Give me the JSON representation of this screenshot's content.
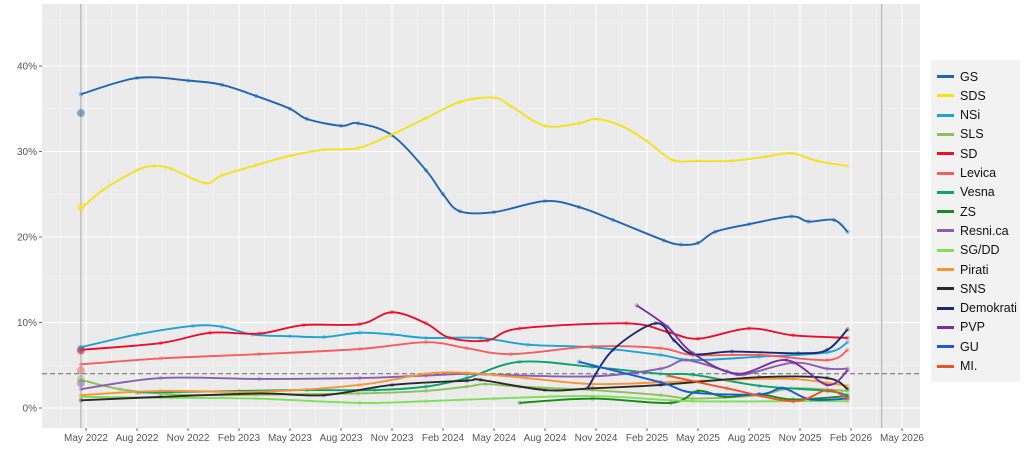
{
  "chart_data": {
    "type": "line",
    "title": "",
    "xlabel": "",
    "ylabel": "",
    "x_unit": "months since Jan 2022",
    "xlim": [
      -1.5,
      53
    ],
    "ylim": [
      -2.3,
      47
    ],
    "y_ticks": [
      {
        "v": 0,
        "label": "0%"
      },
      {
        "v": 10,
        "label": "10%"
      },
      {
        "v": 20,
        "label": "20%"
      },
      {
        "v": 30,
        "label": "30%"
      },
      {
        "v": 40,
        "label": "40%"
      }
    ],
    "x_ticks": [
      {
        "v": 4,
        "label": "May 2022"
      },
      {
        "v": 7,
        "label": "Aug 2022"
      },
      {
        "v": 10,
        "label": "Nov 2022"
      },
      {
        "v": 13,
        "label": "Feb 2023"
      },
      {
        "v": 16,
        "label": "May 2023"
      },
      {
        "v": 19,
        "label": "Aug 2023"
      },
      {
        "v": 22,
        "label": "Nov 2023"
      },
      {
        "v": 25,
        "label": "Feb 2024"
      },
      {
        "v": 28,
        "label": "May 2024"
      },
      {
        "v": 31,
        "label": "Aug 2024"
      },
      {
        "v": 34,
        "label": "Nov 2024"
      },
      {
        "v": 37,
        "label": "Feb 2025"
      },
      {
        "v": 40,
        "label": "May 2025"
      },
      {
        "v": 43,
        "label": "Aug 2025"
      },
      {
        "v": 46,
        "label": "Nov 2025"
      },
      {
        "v": 49,
        "label": "Feb 2026"
      },
      {
        "v": 52,
        "label": "May 2026"
      }
    ],
    "vlines": [
      3.7,
      50.8
    ],
    "threshold": 4,
    "grid": true,
    "legend_position": "right",
    "election_results": [
      {
        "party": "GS",
        "value": 34.5
      },
      {
        "party": "SDS",
        "value": 23.5
      },
      {
        "party": "NSi",
        "value": 6.9
      },
      {
        "party": "SD",
        "value": 6.7
      },
      {
        "party": "Levica",
        "value": 4.4
      },
      {
        "party": "SLS",
        "value": 3.4
      },
      {
        "party": "Resni.ca",
        "value": 2.9
      }
    ],
    "series": [
      {
        "name": "GS",
        "color": "#1f66b0",
        "x": [
          3.7,
          7,
          10,
          12,
          14,
          16,
          17,
          19,
          20,
          22,
          24,
          25,
          26,
          28,
          31,
          33,
          35,
          38,
          39,
          40,
          41,
          43,
          45.5,
          46.5,
          48,
          48.8
        ],
        "values": [
          36.7,
          38.6,
          38.3,
          37.8,
          36.5,
          35,
          33.8,
          33,
          33.3,
          31.9,
          27.8,
          25,
          23,
          22.9,
          24.2,
          23.5,
          22,
          19.6,
          19.1,
          19.3,
          20.6,
          21.5,
          22.4,
          21.8,
          22,
          20.6
        ]
      },
      {
        "name": "SDS",
        "color": "#f5e11e",
        "x": [
          3.7,
          5,
          7,
          8,
          9,
          11,
          12,
          14,
          16,
          18,
          20,
          22,
          24,
          26,
          28,
          29,
          31,
          33,
          34,
          35.5,
          37,
          38.5,
          40,
          42,
          44,
          45.5,
          47,
          48.8
        ],
        "values": [
          23.3,
          25.5,
          27.8,
          28.3,
          28,
          26.3,
          27.2,
          28.4,
          29.5,
          30.2,
          30.4,
          32,
          33.9,
          35.8,
          36.3,
          35.3,
          33,
          33.3,
          33.8,
          33,
          31.2,
          29,
          28.9,
          28.9,
          29.4,
          29.8,
          28.9,
          28.3
        ]
      },
      {
        "name": "NSi",
        "color": "#1ea3d4",
        "x": [
          3.7,
          7,
          10.3,
          12,
          13.8,
          16,
          18,
          20.1,
          22,
          24,
          27.2,
          30,
          33.8,
          37.8,
          39.7,
          43.6,
          47.6,
          48.8
        ],
        "values": [
          7.1,
          8.6,
          9.6,
          9.5,
          8.6,
          8.4,
          8.3,
          8.8,
          8.6,
          8.2,
          8.2,
          7.4,
          7.1,
          6.2,
          5.6,
          6.0,
          6.5,
          7.7
        ]
      },
      {
        "name": "SLS",
        "color": "#8cc157",
        "x": [
          3.7,
          6,
          9,
          12,
          16,
          20,
          24,
          26.4,
          27.5,
          29.5,
          33.8,
          37.8,
          39.7,
          43.6,
          45.5,
          48.8
        ],
        "values": [
          3.3,
          2.2,
          1.6,
          1.5,
          1.6,
          1.7,
          2.0,
          2.5,
          2.8,
          2.5,
          2.1,
          1.5,
          1.1,
          1.5,
          2.3,
          2.0
        ]
      },
      {
        "name": "SD",
        "color": "#e8112d",
        "x": [
          3.7,
          8.4,
          11.3,
          14.2,
          16.8,
          20.1,
          22,
          24,
          25.4,
          27.6,
          29.5,
          35.8,
          38.2,
          40,
          43,
          45.6,
          48.8
        ],
        "values": [
          6.8,
          7.6,
          8.8,
          8.7,
          9.7,
          9.8,
          11.2,
          9.9,
          8.2,
          7.9,
          9.3,
          9.9,
          8.9,
          8.1,
          9.3,
          8.5,
          8.2
        ]
      },
      {
        "name": "Levica",
        "color": "#f55e5e",
        "x": [
          3.7,
          8.4,
          14.2,
          20.1,
          24,
          26.4,
          29,
          33.8,
          37.8,
          39.7,
          43.6,
          47.6,
          48.8
        ],
        "values": [
          5.1,
          5.8,
          6.3,
          6.9,
          7.7,
          7.0,
          6.3,
          7.2,
          7.0,
          6.2,
          6.2,
          5.6,
          6.8
        ]
      },
      {
        "name": "Vesna",
        "color": "#0ca370",
        "x": [
          7,
          13,
          17,
          21,
          24,
          26.4,
          29.5,
          33.8,
          37.8,
          39.7,
          43.6,
          47.6,
          48.8
        ],
        "values": [
          1.8,
          2.0,
          2.1,
          2.1,
          2.5,
          3.5,
          5.4,
          4.8,
          4.0,
          3.9,
          2.6,
          2.0,
          1.5
        ]
      },
      {
        "name": "ZS",
        "color": "#198a19",
        "x": [
          29.5,
          33.8,
          38.4,
          40,
          41.6,
          43.6,
          45.6,
          48.8
        ],
        "values": [
          0.6,
          1.1,
          0.6,
          2.0,
          1.3,
          1.6,
          1.0,
          1.4
        ]
      },
      {
        "name": "Resni.ca",
        "color": "#8a5fb0",
        "x": [
          3.7,
          8.4,
          14.2,
          20.1,
          24,
          26.4,
          28,
          33.8,
          37.8,
          39.3,
          41.7,
          42.7,
          45.6,
          47.6,
          48.8
        ],
        "values": [
          2.2,
          3.5,
          3.4,
          3.5,
          3.8,
          4.0,
          3.9,
          3.7,
          4.6,
          5.6,
          4.3,
          3.9,
          5.3,
          4.6,
          4.6
        ]
      },
      {
        "name": "SG/DD",
        "color": "#7ee05a",
        "x": [
          3.7,
          9,
          14,
          20.1,
          24,
          28,
          33.8,
          39.7,
          45.6,
          48.8
        ],
        "values": [
          1.3,
          1.2,
          1.1,
          0.6,
          0.8,
          1.1,
          1.4,
          0.8,
          0.8,
          0.8
        ]
      },
      {
        "name": "Pirati",
        "color": "#f79535",
        "x": [
          3.7,
          8.4,
          14.2,
          20.1,
          24,
          26.4,
          29.9,
          33.8,
          37.8,
          41.7,
          45.6,
          48.8
        ],
        "values": [
          1.5,
          2.0,
          1.9,
          2.7,
          4.0,
          4.1,
          3.5,
          2.8,
          3.0,
          3.3,
          3.4,
          2.6
        ]
      },
      {
        "name": "SNS",
        "color": "#2a2a2a",
        "x": [
          3.7,
          8.4,
          14.2,
          18,
          22,
          26.4,
          27.2,
          31,
          33.8,
          37.8,
          43.6,
          47.6,
          48.8
        ],
        "values": [
          0.9,
          1.3,
          1.7,
          1.5,
          2.7,
          3.2,
          3.3,
          2.1,
          2.3,
          2.7,
          3.6,
          3.5,
          2.2
        ]
      },
      {
        "name": "Demokrati",
        "color": "#1b2a6e",
        "x": [
          33.5,
          35,
          37.5,
          38.6,
          39.7,
          42,
          45.9,
          47.6,
          48.8
        ],
        "values": [
          2.3,
          6.8,
          9.9,
          7.9,
          6.3,
          6.6,
          6.4,
          6.8,
          9.2
        ]
      },
      {
        "name": "PVP",
        "color": "#7a2ea0",
        "x": [
          36.4,
          38.2,
          39.7,
          42.3,
          45.2,
          47.6,
          48.8
        ],
        "values": [
          12.0,
          9.5,
          6.4,
          4.0,
          5.6,
          2.7,
          4.4
        ]
      },
      {
        "name": "GU",
        "color": "#1a5bd4",
        "x": [
          33,
          37.8,
          39.7,
          43.6,
          45,
          46.6,
          48.8
        ],
        "values": [
          5.4,
          3.0,
          1.8,
          1.6,
          2.3,
          1.0,
          1.1
        ]
      },
      {
        "name": "MI.",
        "color": "#f45028",
        "x": [
          38.2,
          41.7,
          45.6,
          47.6,
          48.8
        ],
        "values": [
          3.8,
          2.3,
          0.8,
          2.1,
          1.1
        ]
      }
    ]
  }
}
